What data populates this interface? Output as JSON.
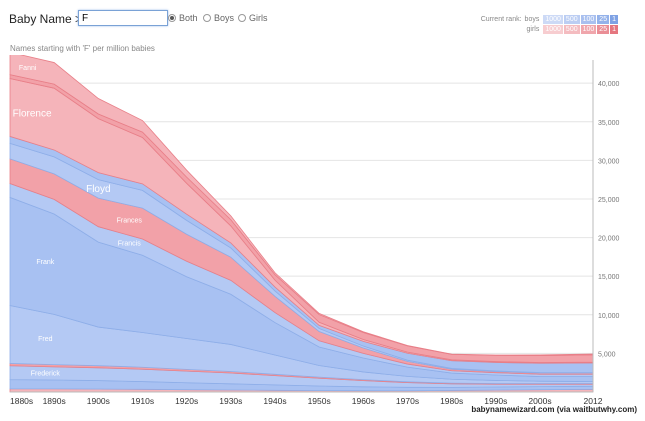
{
  "header": {
    "title": "Baby Name >",
    "search_value": "F",
    "radios": [
      {
        "label": "Both",
        "selected": true
      },
      {
        "label": "Boys",
        "selected": false
      },
      {
        "label": "Girls",
        "selected": false
      }
    ],
    "rank_label": "Current rank:",
    "boys_label": "boys",
    "girls_label": "girls",
    "rank_buttons": [
      "1000",
      "500",
      "100",
      "25",
      "1"
    ]
  },
  "subtitle": "Names starting with 'F' per million babies",
  "credit": "babynamewizard.com (via waitbutwhy.com)",
  "colors": {
    "boys": "#a8c1f2",
    "girls": "#f2a1a8",
    "boys_dark": "#8eaee8",
    "girls_dark": "#e87f88"
  },
  "chart_data": {
    "type": "area",
    "stacked": true,
    "x": [
      "1880s",
      "1890s",
      "1900s",
      "1910s",
      "1920s",
      "1930s",
      "1940s",
      "1950s",
      "1960s",
      "1970s",
      "1980s",
      "1990s",
      "2000s",
      "2012"
    ],
    "x_numeric": [
      1880,
      1890,
      1900,
      1910,
      1920,
      1930,
      1940,
      1950,
      1960,
      1970,
      1980,
      1990,
      2000,
      2012
    ],
    "yticks": [
      "5,000",
      "10,000",
      "15,000",
      "20,000",
      "25,000",
      "30,000",
      "35,000",
      "40,000"
    ],
    "ylim": [
      0,
      43000
    ],
    "series": [
      {
        "name": "",
        "gender": "girl",
        "values": [
          400,
          400,
          380,
          350,
          300,
          260,
          220,
          180,
          170,
          160,
          200,
          250,
          300,
          350
        ]
      },
      {
        "name": "",
        "gender": "boy",
        "values": [
          1200,
          1150,
          1100,
          1000,
          900,
          800,
          700,
          600,
          500,
          450,
          400,
          400,
          400,
          400
        ]
      },
      {
        "name": "Frederick",
        "gender": "boy",
        "values": [
          1800,
          1700,
          1650,
          1600,
          1500,
          1400,
          1200,
          1000,
          800,
          600,
          450,
          350,
          300,
          250
        ]
      },
      {
        "name": "",
        "gender": "girl",
        "values": [
          300,
          300,
          280,
          260,
          230,
          200,
          170,
          150,
          130,
          110,
          100,
          100,
          100,
          100
        ]
      },
      {
        "name": "Fred",
        "gender": "boy",
        "values": [
          7500,
          6500,
          5000,
          4500,
          4000,
          3500,
          2500,
          1500,
          1000,
          700,
          500,
          400,
          300,
          250
        ]
      },
      {
        "name": "Frank",
        "gender": "boy",
        "values": [
          14000,
          13000,
          11000,
          10000,
          8000,
          6500,
          4200,
          2400,
          1800,
          1200,
          800,
          700,
          600,
          650
        ]
      },
      {
        "name": "Francis",
        "gender": "boy",
        "values": [
          1800,
          1900,
          2000,
          2100,
          2000,
          1800,
          1300,
          800,
          600,
          400,
          300,
          300,
          300,
          300
        ]
      },
      {
        "name": "Frances",
        "gender": "girl",
        "values": [
          3200,
          3300,
          3700,
          4000,
          3500,
          3000,
          2100,
          1200,
          700,
          350,
          200,
          150,
          150,
          150
        ]
      },
      {
        "name": "Floyd",
        "gender": "boy",
        "values": [
          2000,
          2200,
          2400,
          2300,
          1800,
          1200,
          700,
          400,
          250,
          150,
          100,
          80,
          70,
          60
        ]
      },
      {
        "name": "",
        "gender": "boy",
        "values": [
          900,
          900,
          900,
          850,
          800,
          650,
          500,
          400,
          600,
          900,
          1000,
          1100,
          1200,
          1250
        ]
      },
      {
        "name": "Florence",
        "gender": "girl",
        "values": [
          7500,
          8000,
          7000,
          6000,
          4000,
          2200,
          900,
          400,
          250,
          150,
          120,
          110,
          100,
          100
        ]
      },
      {
        "name": "",
        "gender": "girl",
        "values": [
          500,
          520,
          600,
          700,
          800,
          800,
          700,
          1000,
          900,
          800,
          700,
          800,
          900,
          950
        ]
      },
      {
        "name": "Fannie",
        "gender": "girl",
        "values": [
          2900,
          2800,
          2000,
          1500,
          900,
          500,
          250,
          150,
          100,
          50,
          30,
          50,
          80,
          100
        ]
      }
    ],
    "annotations": [
      {
        "text": "Florence",
        "series": "Florence",
        "x_index": 0.5
      },
      {
        "text": "Floyd",
        "series": "Floyd",
        "x_index": 2
      },
      {
        "text": "Frances",
        "series": "Frances",
        "x_index": 2.7
      },
      {
        "text": "Francis",
        "series": "Francis",
        "x_index": 2.7
      },
      {
        "text": "Frank",
        "series": "Frank",
        "x_index": 0.8
      },
      {
        "text": "Fred",
        "series": "Fred",
        "x_index": 0.8
      },
      {
        "text": "Frederick",
        "series": "Frederick",
        "x_index": 0.8
      },
      {
        "text": "Fanni",
        "series": "Fannie",
        "x_index": 0.4
      }
    ]
  }
}
